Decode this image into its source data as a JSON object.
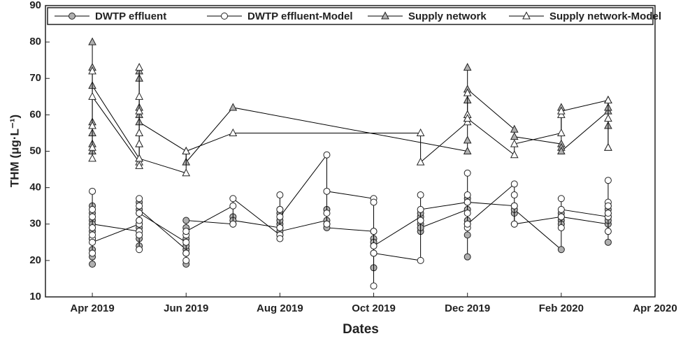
{
  "chart_data": {
    "type": "line",
    "xlabel": "Dates",
    "ylabel": "THM (μg·L⁻¹)",
    "xlim": [
      "2019-03",
      "2020-04"
    ],
    "xticks": [
      {
        "value": "2019-04",
        "label": "Apr 2019"
      },
      {
        "value": "2019-06",
        "label": "Jun 2019"
      },
      {
        "value": "2019-08",
        "label": "Aug 2019"
      },
      {
        "value": "2019-10",
        "label": "Oct 2019"
      },
      {
        "value": "2019-12",
        "label": "Dec 2019"
      },
      {
        "value": "2020-02",
        "label": "Feb 2020"
      },
      {
        "value": "2020-04",
        "label": "Apr 2020"
      }
    ],
    "ylim": [
      10,
      90
    ],
    "yticks": [
      10,
      20,
      30,
      40,
      50,
      60,
      70,
      80,
      90
    ],
    "legend": "top",
    "series": [
      {
        "name": "DWTP effluent",
        "color": "#000000",
        "marker": "circle",
        "marker_fill": "#b0b0b0",
        "x": [
          "2019-04",
          "2019-04",
          "2019-04",
          "2019-04",
          "2019-04",
          "2019-04",
          "2019-04",
          "2019-04",
          "2019-04",
          "2019-04",
          "2019-05",
          "2019-05",
          "2019-05",
          "2019-05",
          "2019-05",
          "2019-05",
          "2019-05",
          "2019-05",
          "2019-05",
          "2019-05",
          "2019-06",
          "2019-06",
          "2019-06",
          "2019-06",
          "2019-06",
          "2019-06",
          "2019-06",
          "2019-07",
          "2019-07",
          "2019-07",
          "2019-08",
          "2019-08",
          "2019-08",
          "2019-08",
          "2019-08",
          "2019-08",
          "2019-08",
          "2019-09",
          "2019-09",
          "2019-09",
          "2019-09",
          "2019-10",
          "2019-10",
          "2019-10",
          "2019-10",
          "2019-10",
          "2019-10",
          "2019-11",
          "2019-11",
          "2019-11",
          "2019-11",
          "2019-11",
          "2019-12",
          "2019-12",
          "2019-12",
          "2019-12",
          "2019-12",
          "2019-12",
          "2019-12",
          "2020-01",
          "2020-01",
          "2020-01",
          "2020-01",
          "2020-02",
          "2020-02",
          "2020-02",
          "2020-02",
          "2020-02",
          "2020-03",
          "2020-03",
          "2020-03",
          "2020-03",
          "2020-03",
          "2020-03",
          "2020-03"
        ],
        "values": [
          23,
          19,
          21,
          26,
          33,
          28,
          31,
          35,
          26,
          30,
          28,
          24,
          33,
          30,
          27,
          36,
          29,
          31,
          26,
          34,
          23,
          19,
          26,
          24,
          22,
          29,
          31,
          30,
          32,
          31,
          29,
          33,
          30,
          27,
          31,
          34,
          28,
          31,
          34,
          30,
          29,
          28,
          22,
          18,
          26,
          25,
          24,
          32,
          28,
          30,
          33,
          29,
          34,
          21,
          31,
          37,
          30,
          27,
          36,
          35,
          33,
          30,
          34,
          23,
          31,
          33,
          30,
          32,
          30,
          25,
          33,
          35,
          32,
          34,
          31
        ]
      },
      {
        "name": "DWTP effluent-Model",
        "color": "#000000",
        "marker": "circle",
        "marker_fill": "#ffffff",
        "x": [
          "2019-04",
          "2019-04",
          "2019-04",
          "2019-04",
          "2019-04",
          "2019-04",
          "2019-04",
          "2019-04",
          "2019-05",
          "2019-05",
          "2019-05",
          "2019-05",
          "2019-05",
          "2019-05",
          "2019-05",
          "2019-05",
          "2019-06",
          "2019-06",
          "2019-06",
          "2019-06",
          "2019-06",
          "2019-07",
          "2019-07",
          "2019-07",
          "2019-08",
          "2019-08",
          "2019-08",
          "2019-08",
          "2019-08",
          "2019-08",
          "2019-09",
          "2019-09",
          "2019-09",
          "2019-09",
          "2019-10",
          "2019-10",
          "2019-10",
          "2019-10",
          "2019-10",
          "2019-10",
          "2019-11",
          "2019-11",
          "2019-11",
          "2019-11",
          "2019-12",
          "2019-12",
          "2019-12",
          "2019-12",
          "2019-12",
          "2019-12",
          "2020-01",
          "2020-01",
          "2020-01",
          "2020-01",
          "2020-02",
          "2020-02",
          "2020-02",
          "2020-02",
          "2020-03",
          "2020-03",
          "2020-03",
          "2020-03",
          "2020-03",
          "2020-03"
        ],
        "values": [
          26,
          22,
          29,
          34,
          39,
          27,
          32,
          25,
          30,
          23,
          35,
          28,
          37,
          31,
          27,
          33,
          25,
          20,
          27,
          22,
          28,
          35,
          30,
          37,
          27,
          38,
          29,
          34,
          26,
          32,
          49,
          33,
          30,
          39,
          37,
          13,
          24,
          28,
          36,
          22,
          20,
          38,
          31,
          34,
          36,
          29,
          44,
          33,
          38,
          30,
          41,
          35,
          38,
          30,
          32,
          37,
          29,
          34,
          32,
          42,
          36,
          33,
          35,
          28
        ]
      },
      {
        "name": "Supply network",
        "color": "#000000",
        "marker": "triangle",
        "marker_fill": "#b0b0b0",
        "x": [
          "2019-04",
          "2019-04",
          "2019-04",
          "2019-04",
          "2019-04",
          "2019-04",
          "2019-04",
          "2019-05",
          "2019-05",
          "2019-05",
          "2019-05",
          "2019-05",
          "2019-05",
          "2019-05",
          "2019-05",
          "2019-06",
          "2019-06",
          "2019-07",
          "2019-12",
          "2019-12",
          "2019-12",
          "2019-12",
          "2019-12",
          "2019-12",
          "2019-12",
          "2020-01",
          "2020-01",
          "2020-02",
          "2020-02",
          "2020-02",
          "2020-02",
          "2020-03",
          "2020-03",
          "2020-03",
          "2020-03",
          "2020-03"
        ],
        "values": [
          52,
          50,
          55,
          58,
          80,
          73,
          68,
          48,
          72,
          70,
          62,
          55,
          52,
          60,
          58,
          50,
          47,
          62,
          50,
          60,
          73,
          64,
          59,
          53,
          67,
          56,
          54,
          52,
          51,
          62,
          50,
          61,
          64,
          57,
          51,
          62
        ]
      },
      {
        "name": "Supply network-Model",
        "color": "#000000",
        "marker": "triangle",
        "marker_fill": "#ffffff",
        "x": [
          "2019-04",
          "2019-04",
          "2019-04",
          "2019-04",
          "2019-04",
          "2019-05",
          "2019-05",
          "2019-05",
          "2019-05",
          "2019-05",
          "2019-05",
          "2019-05",
          "2019-05",
          "2019-06",
          "2019-06",
          "2019-07",
          "2019-11",
          "2019-11",
          "2019-12",
          "2019-12",
          "2019-12",
          "2019-12",
          "2020-01",
          "2020-01",
          "2020-02",
          "2020-02",
          "2020-02",
          "2020-03",
          "2020-03",
          "2020-03",
          "2020-03"
        ],
        "values": [
          51,
          48,
          57,
          72,
          65,
          47,
          73,
          61,
          52,
          46,
          55,
          65,
          48,
          44,
          50,
          55,
          55,
          47,
          58,
          66,
          60,
          59,
          49,
          52,
          55,
          60,
          61,
          64,
          64,
          59,
          51
        ]
      }
    ]
  }
}
